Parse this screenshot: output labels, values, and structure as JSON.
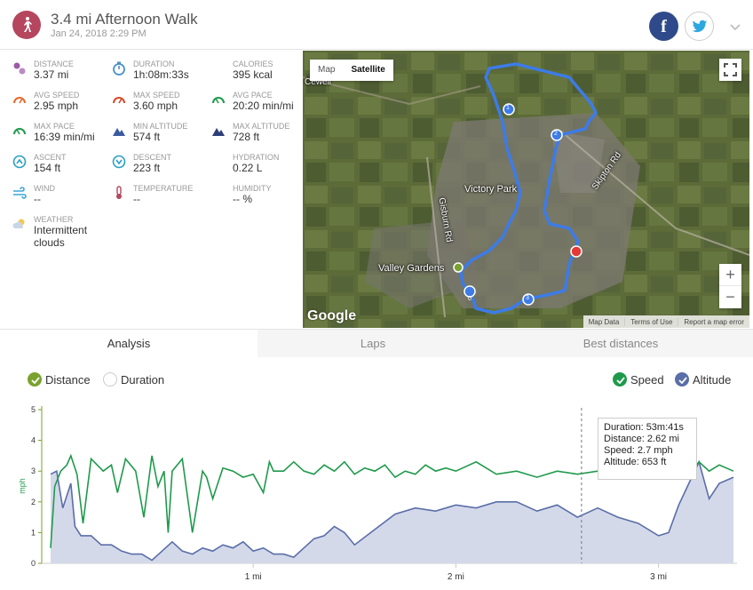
{
  "header": {
    "title": "3.4 mi Afternoon Walk",
    "date": "Jan 24, 2018 2:29 PM",
    "facebook_label": "f"
  },
  "stats": [
    {
      "label": "DISTANCE",
      "value": "3.37 mi",
      "icon": "distance-icon",
      "color": "#9b5aa6"
    },
    {
      "label": "DURATION",
      "value": "1h:08m:33s",
      "icon": "stopwatch-icon",
      "color": "#4a90c8"
    },
    {
      "label": "CALORIES",
      "value": "395 kcal",
      "icon": "flame-icon",
      "color": "#e56a2c"
    },
    {
      "label": "AVG SPEED",
      "value": "2.95 mph",
      "icon": "speedometer-icon",
      "color": "#e56a2c"
    },
    {
      "label": "MAX SPEED",
      "value": "3.60 mph",
      "icon": "speedometer-icon",
      "color": "#d64a2a"
    },
    {
      "label": "AVG PACE",
      "value": "20:20 min/mi",
      "icon": "pace-gauge-icon",
      "color": "#1f9a4c"
    },
    {
      "label": "MAX PACE",
      "value": "16:39 min/mi",
      "icon": "pace-gauge-icon",
      "color": "#1f9a4c"
    },
    {
      "label": "MIN ALTITUDE",
      "value": "574 ft",
      "icon": "mountain-icon",
      "color": "#3b5ba0"
    },
    {
      "label": "MAX ALTITUDE",
      "value": "728 ft",
      "icon": "mountain-icon",
      "color": "#2d3f7a"
    },
    {
      "label": "ASCENT",
      "value": "154 ft",
      "icon": "ascent-icon",
      "color": "#2a9fc4"
    },
    {
      "label": "DESCENT",
      "value": "223 ft",
      "icon": "descent-icon",
      "color": "#2a9fc4"
    },
    {
      "label": "HYDRATION",
      "value": "0.22 L",
      "icon": "water-drops-icon",
      "color": "#5aa0e0"
    },
    {
      "label": "WIND",
      "value": "--",
      "icon": "wind-icon",
      "color": "#3aa6d6"
    },
    {
      "label": "TEMPERATURE",
      "value": "--",
      "icon": "thermometer-icon",
      "color": "#b5465e"
    },
    {
      "label": "HUMIDITY",
      "value": "-- %",
      "icon": "humidity-icon",
      "color": "#5aa0e0"
    },
    {
      "label": "WEATHER",
      "value": "Intermittent clouds",
      "icon": "partly-cloudy-icon",
      "color": "#f2c94c"
    }
  ],
  "map": {
    "type_map": "Map",
    "type_satellite": "Satellite",
    "labels": [
      "Victory Park",
      "Valley Gardens",
      "Gisburn Rd",
      "Skipton Rd",
      "Cewell"
    ],
    "markers": [
      "0",
      "1",
      "2",
      "3"
    ],
    "logo": "Google",
    "attribution": [
      "Map Data",
      "Terms of Use",
      "Report a map error"
    ],
    "zoom_in": "+",
    "zoom_out": "−"
  },
  "tabs": [
    {
      "label": "Analysis",
      "active": true
    },
    {
      "label": "Laps",
      "active": false
    },
    {
      "label": "Best distances",
      "active": false
    }
  ],
  "legend": {
    "distance": "Distance",
    "duration": "Duration",
    "speed": "Speed",
    "altitude": "Altitude"
  },
  "tooltip": {
    "duration": "Duration: 53m:41s",
    "distance": "Distance: 2.62 mi",
    "speed": "Speed: 2.7 mph",
    "altitude": "Altitude: 653 ft"
  },
  "chart_data": {
    "type": "line",
    "ylabel": "mph",
    "ylim": [
      0,
      5
    ],
    "y_ticks": [
      "0",
      "1",
      "2",
      "3",
      "4",
      "5"
    ],
    "xlim": [
      0,
      3.37
    ],
    "x_ticks": [
      {
        "value": 1,
        "label": "1 mi"
      },
      {
        "value": 2,
        "label": "2 mi"
      },
      {
        "value": 3,
        "label": "3 mi"
      }
    ],
    "cursor_x": 2.62,
    "series": [
      {
        "name": "Speed",
        "color": "#1f9a4c",
        "x": [
          0.0,
          0.02,
          0.05,
          0.08,
          0.1,
          0.13,
          0.16,
          0.2,
          0.23,
          0.26,
          0.3,
          0.33,
          0.37,
          0.42,
          0.46,
          0.5,
          0.53,
          0.56,
          0.58,
          0.6,
          0.65,
          0.7,
          0.75,
          0.77,
          0.8,
          0.85,
          0.9,
          0.95,
          1.0,
          1.05,
          1.08,
          1.1,
          1.15,
          1.2,
          1.25,
          1.3,
          1.35,
          1.4,
          1.45,
          1.5,
          1.55,
          1.6,
          1.65,
          1.7,
          1.75,
          1.8,
          1.85,
          1.9,
          1.95,
          2.0,
          2.1,
          2.2,
          2.3,
          2.4,
          2.5,
          2.6,
          2.7,
          2.8,
          2.9,
          3.0,
          3.05,
          3.1,
          3.15,
          3.2,
          3.25,
          3.3,
          3.37
        ],
        "y": [
          0.5,
          2.5,
          3.0,
          3.2,
          3.5,
          2.9,
          1.3,
          3.4,
          3.2,
          3.0,
          3.2,
          2.3,
          3.4,
          3.0,
          1.5,
          3.5,
          2.5,
          3.0,
          1.0,
          3.0,
          3.4,
          1.0,
          3.0,
          2.8,
          2.1,
          3.1,
          3.0,
          2.8,
          2.9,
          2.3,
          3.3,
          3.0,
          3.0,
          3.3,
          3.0,
          2.9,
          3.2,
          3.0,
          3.3,
          2.9,
          3.1,
          3.0,
          3.2,
          2.8,
          3.0,
          2.9,
          3.2,
          3.0,
          3.1,
          3.0,
          3.3,
          2.9,
          3.0,
          2.8,
          3.0,
          2.9,
          3.0,
          2.8,
          2.9,
          2.8,
          3.0,
          3.2,
          2.9,
          3.3,
          3.0,
          3.2,
          3.0
        ]
      },
      {
        "name": "Altitude",
        "color": "#5a6ea8",
        "x": [
          0.0,
          0.03,
          0.06,
          0.1,
          0.12,
          0.15,
          0.2,
          0.25,
          0.3,
          0.35,
          0.4,
          0.45,
          0.5,
          0.55,
          0.6,
          0.65,
          0.7,
          0.75,
          0.8,
          0.85,
          0.9,
          0.95,
          1.0,
          1.05,
          1.1,
          1.15,
          1.2,
          1.25,
          1.3,
          1.35,
          1.4,
          1.45,
          1.5,
          1.6,
          1.7,
          1.8,
          1.9,
          2.0,
          2.1,
          2.2,
          2.3,
          2.4,
          2.5,
          2.6,
          2.7,
          2.8,
          2.9,
          3.0,
          3.05,
          3.1,
          3.15,
          3.2,
          3.25,
          3.3,
          3.37
        ],
        "y": [
          2.9,
          3.0,
          1.8,
          2.6,
          1.2,
          0.9,
          0.9,
          0.6,
          0.6,
          0.4,
          0.3,
          0.3,
          0.1,
          0.4,
          0.7,
          0.4,
          0.3,
          0.5,
          0.4,
          0.6,
          0.5,
          0.7,
          0.4,
          0.5,
          0.3,
          0.3,
          0.2,
          0.5,
          0.8,
          0.9,
          1.2,
          1.0,
          0.6,
          1.1,
          1.6,
          1.8,
          1.7,
          1.9,
          1.8,
          2.0,
          2.0,
          1.7,
          1.9,
          1.5,
          1.8,
          1.5,
          1.3,
          0.9,
          1.0,
          1.9,
          2.6,
          3.3,
          2.1,
          2.6,
          2.8
        ]
      }
    ]
  }
}
